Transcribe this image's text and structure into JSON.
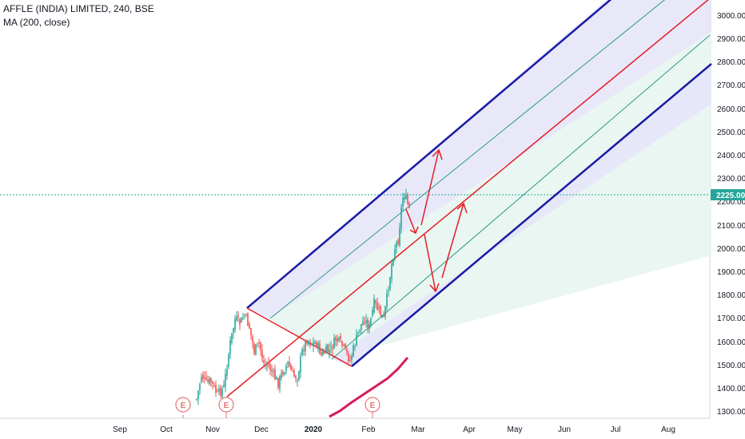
{
  "header": {
    "symbol_line": "AFFLE (INDIA) LIMITED, 240, BSE",
    "indicator_line": "MA (200, close)"
  },
  "price_axis": {
    "ticks": [
      "3000.00",
      "2900.00",
      "2800.00",
      "2700.00",
      "2600.00",
      "2500.00",
      "2400.00",
      "2300.00",
      "2200.00",
      "2100.00",
      "2000.00",
      "1900.00",
      "1800.00",
      "1700.00",
      "1600.00",
      "1500.00",
      "1400.00",
      "1300.00"
    ],
    "tick_values": [
      3000,
      2900,
      2800,
      2700,
      2600,
      2500,
      2400,
      2300,
      2200,
      2100,
      2000,
      1900,
      1800,
      1700,
      1600,
      1500,
      1400,
      1300
    ],
    "current_price_label": "2225.00",
    "current_price": 2225
  },
  "time_axis": {
    "labels": [
      "Sep",
      "Oct",
      "Nov",
      "Dec",
      "2020",
      "Jan",
      "Feb",
      "Mar",
      "Apr",
      "May",
      "Jun",
      "Jul",
      "Aug"
    ],
    "bold_label": "2020"
  },
  "earnings_markers": [
    "E",
    "E",
    "E"
  ],
  "colors": {
    "up": "#26a69a",
    "down": "#ef5350",
    "channel_outer": "#1a1aa6",
    "channel_median": "#e31e24",
    "channel_inner": "#2a9a8a",
    "ma_line": "#d81b60",
    "arrows": "#e31e24",
    "price_line": "#26a69a"
  }
}
